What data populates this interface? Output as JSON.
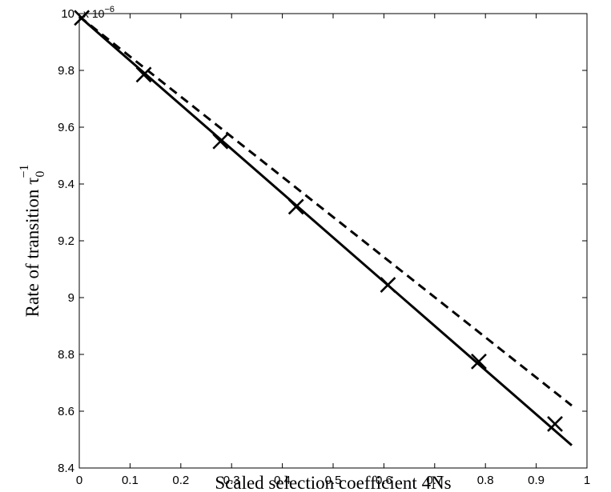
{
  "chart_data": {
    "type": "line",
    "xlabel": "Scaled selection coefficient 4Ns",
    "ylabel": {
      "text": "Rate of transition τ",
      "subscript": "0",
      "superscript": "−1"
    },
    "y_multiplier": "x 10",
    "y_multiplier_exponent": "−6",
    "xlim": [
      0,
      1
    ],
    "ylim": [
      8.4,
      10.0
    ],
    "xticks": [
      "0",
      "0.1",
      "0.2",
      "0.3",
      "0.4",
      "0.5",
      "0.6",
      "0.7",
      "0.8",
      "0.9",
      "1"
    ],
    "yticks": [
      "8.4",
      "8.6",
      "8.8",
      "9",
      "9.2",
      "9.4",
      "9.6",
      "9.8",
      "10"
    ],
    "grid": false,
    "series": [
      {
        "style": "solid",
        "color": "#000000",
        "x": [
          0,
          0.97
        ],
        "y": [
          9.99,
          8.48
        ]
      },
      {
        "style": "dashed",
        "color": "#000000",
        "x": [
          0,
          0.97
        ],
        "y": [
          9.99,
          8.62
        ]
      },
      {
        "style": "markers-x",
        "color": "#000000",
        "x": [
          0.005,
          0.127,
          0.278,
          0.427,
          0.608,
          0.787,
          0.937
        ],
        "y": [
          9.985,
          9.785,
          9.55,
          9.32,
          9.045,
          8.775,
          8.555
        ]
      }
    ]
  }
}
